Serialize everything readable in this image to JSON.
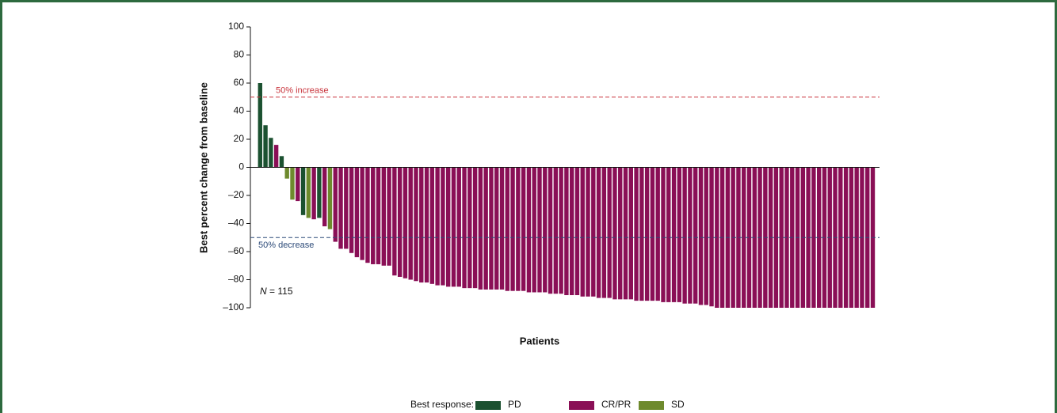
{
  "chart_data": {
    "type": "bar",
    "y_label": "Best percent change from baseline",
    "x_label": "Patients",
    "legend_title": "Best response:",
    "ylim": [
      -100,
      100
    ],
    "yticks": [
      {
        "value": -100,
        "label": "–100"
      },
      {
        "value": -80,
        "label": "–80"
      },
      {
        "value": -60,
        "label": "–60"
      },
      {
        "value": -40,
        "label": "–40"
      },
      {
        "value": -20,
        "label": "–20"
      },
      0,
      20,
      40,
      60,
      80,
      100
    ],
    "reference_lines": [
      {
        "value": 50,
        "label": "50% increase",
        "color": "#c8323a"
      },
      {
        "value": -50,
        "label": "50% decrease",
        "color": "#2c4a78"
      }
    ],
    "sample_size": {
      "symbol": "N",
      "text": "= 115"
    },
    "series": [
      {
        "name": "PD",
        "color": "#1b5130",
        "values": [
          60,
          30,
          21,
          null,
          8,
          null,
          null,
          null,
          -34,
          null,
          null,
          -36,
          null,
          null,
          null,
          null,
          null,
          null,
          null,
          null,
          null,
          null,
          null,
          null,
          null,
          null,
          null,
          null,
          null,
          null,
          null,
          null,
          null,
          null,
          null,
          null,
          null,
          null,
          null,
          null,
          null,
          null,
          null,
          null,
          null,
          null,
          null,
          null,
          null,
          null,
          null,
          null,
          null,
          null,
          null,
          null,
          null,
          null,
          null,
          null,
          null,
          null,
          null,
          null,
          null,
          null,
          null,
          null,
          null,
          null,
          null,
          null,
          null,
          null,
          null,
          null,
          null,
          null,
          null,
          null,
          null,
          null,
          null,
          null,
          null,
          null,
          null,
          null,
          null,
          null,
          null,
          null,
          null,
          null,
          null,
          null,
          null,
          null,
          null,
          null,
          null,
          null,
          null,
          null,
          null,
          null,
          null,
          null,
          null,
          null,
          null,
          null,
          null,
          null,
          null
        ]
      },
      {
        "name": "CR/PR",
        "color": "#8a0f56",
        "values": [
          null,
          null,
          null,
          16,
          null,
          null,
          null,
          -24,
          null,
          null,
          -37,
          null,
          -42,
          null,
          -53,
          -58,
          -58,
          -61,
          -64,
          -66,
          -68,
          -69,
          -69,
          -70,
          -70,
          -77,
          -78,
          -79,
          -80,
          -81,
          -82,
          -82,
          -83,
          -84,
          -84,
          -85,
          -85,
          -85,
          -86,
          -86,
          -86,
          -87,
          -87,
          -87,
          -87,
          -87,
          -88,
          -88,
          -88,
          -88,
          -89,
          -89,
          -89,
          -89,
          -90,
          -90,
          -90,
          -91,
          -91,
          -91,
          -92,
          -92,
          -92,
          -93,
          -93,
          -93,
          -94,
          -94,
          -94,
          -94,
          -95,
          -95,
          -95,
          -95,
          -95,
          -96,
          -96,
          -96,
          -96,
          -97,
          -97,
          -97,
          -98,
          -98,
          -99,
          -100,
          -100,
          -100,
          -100,
          -100,
          -100,
          -100,
          -100,
          -100,
          -100,
          -100,
          -100,
          -100,
          -100,
          -100,
          -100,
          -100,
          -100,
          -100,
          -100,
          -100,
          -100,
          -100,
          -100,
          -100,
          -100,
          -100,
          -100,
          -100,
          -100
        ]
      },
      {
        "name": "SD",
        "color": "#6e8a2d",
        "values": [
          null,
          null,
          null,
          null,
          null,
          -8,
          -23,
          null,
          null,
          -36,
          null,
          null,
          null,
          -44,
          null,
          null,
          null,
          null,
          null,
          null,
          null,
          null,
          null,
          null,
          null,
          null,
          null,
          null,
          null,
          null,
          null,
          null,
          null,
          null,
          null,
          null,
          null,
          null,
          null,
          null,
          null,
          null,
          null,
          null,
          null,
          null,
          null,
          null,
          null,
          null,
          null,
          null,
          null,
          null,
          null,
          null,
          null,
          null,
          null,
          null,
          null,
          null,
          null,
          null,
          null,
          null,
          null,
          null,
          null,
          null,
          null,
          null,
          null,
          null,
          null,
          null,
          null,
          null,
          null,
          null,
          null,
          null,
          null,
          null,
          null,
          null,
          null,
          null,
          null,
          null,
          null,
          null,
          null,
          null,
          null,
          null,
          null,
          null,
          null,
          null,
          null,
          null,
          null,
          null,
          null,
          null,
          null,
          null,
          null,
          null,
          null,
          null,
          null,
          null,
          null
        ]
      }
    ]
  }
}
